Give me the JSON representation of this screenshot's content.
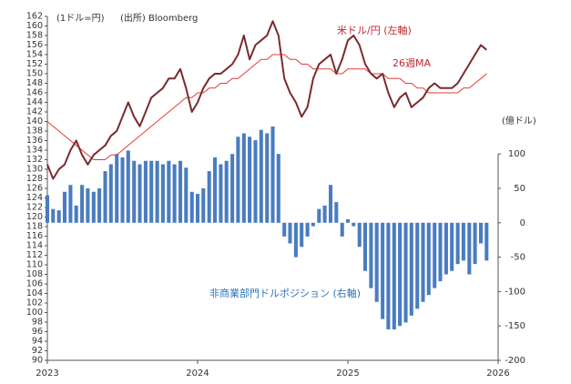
{
  "chart_data": {
    "type": "bar-line",
    "unit_left": "(1ドル=円)",
    "source": "(出所) Bloomberg",
    "unit_right": "(億ドル)",
    "annotations": [
      "米ドル/円 (左軸)",
      "26週MA",
      "非商業部門ドルポジション (右軸)"
    ],
    "x": [
      2023.0,
      2023.038,
      2023.077,
      2023.115,
      2023.154,
      2023.192,
      2023.231,
      2023.269,
      2023.308,
      2023.346,
      2023.385,
      2023.423,
      2023.462,
      2023.5,
      2023.538,
      2023.577,
      2023.615,
      2023.654,
      2023.692,
      2023.731,
      2023.769,
      2023.808,
      2023.846,
      2023.885,
      2023.923,
      2023.962,
      2024.0,
      2024.038,
      2024.077,
      2024.115,
      2024.154,
      2024.192,
      2024.231,
      2024.269,
      2024.308,
      2024.346,
      2024.385,
      2024.423,
      2024.462,
      2024.5,
      2024.538,
      2024.577,
      2024.615,
      2024.654,
      2024.692,
      2024.731,
      2024.769,
      2024.808,
      2024.846,
      2024.885,
      2024.923,
      2024.962,
      2025.0,
      2025.038,
      2025.077,
      2025.115,
      2025.154,
      2025.192,
      2025.231,
      2025.269,
      2025.308,
      2025.346,
      2025.385,
      2025.423,
      2025.462,
      2025.5,
      2025.538,
      2025.577,
      2025.615,
      2025.654,
      2025.692,
      2025.731,
      2025.769,
      2025.808,
      2025.846,
      2025.885,
      2025.923
    ],
    "series": [
      {
        "name": "ドルポジション",
        "kind": "bar",
        "axis": "y2",
        "color": "#4a7cbf",
        "values": [
          40,
          20,
          18,
          45,
          55,
          25,
          55,
          50,
          45,
          50,
          75,
          85,
          100,
          95,
          105,
          90,
          85,
          90,
          90,
          90,
          85,
          90,
          85,
          90,
          80,
          45,
          42,
          50,
          75,
          95,
          85,
          90,
          100,
          125,
          130,
          125,
          120,
          135,
          130,
          140,
          100,
          -20,
          -30,
          -50,
          -35,
          -20,
          -5,
          20,
          25,
          55,
          30,
          -20,
          5,
          -5,
          -35,
          -70,
          -95,
          -115,
          -140,
          -155,
          -155,
          -150,
          -145,
          -135,
          -125,
          -115,
          -105,
          -95,
          -85,
          -75,
          -70,
          -60,
          -55,
          -75,
          -60,
          -30,
          -55
        ]
      },
      {
        "name": "26週MA",
        "kind": "line",
        "color": "#e23b3b",
        "width": 1,
        "values": [
          140,
          139,
          138,
          137,
          136,
          135,
          134,
          133,
          132,
          132,
          132,
          133,
          133,
          134,
          135,
          136,
          137,
          138,
          139,
          140,
          141,
          142,
          143,
          144,
          145,
          145,
          146,
          146,
          147,
          147,
          148,
          148,
          149,
          149,
          150,
          151,
          152,
          153,
          153,
          154,
          154,
          154,
          153,
          153,
          152,
          152,
          151,
          151,
          151,
          151,
          150,
          150,
          151,
          151,
          151,
          151,
          150,
          150,
          150,
          149,
          149,
          149,
          148,
          148,
          147,
          147,
          146,
          146,
          146,
          146,
          146,
          146,
          147,
          147,
          148,
          149,
          150
        ]
      },
      {
        "name": "米ドル/円",
        "kind": "line",
        "color": "#7b2b2e",
        "width": 2,
        "values": [
          131,
          128,
          130,
          131,
          134,
          136,
          133,
          131,
          133,
          134,
          135,
          137,
          138,
          141,
          144,
          141,
          139,
          142,
          145,
          146,
          147,
          149,
          149,
          151,
          147,
          142,
          144,
          147,
          149,
          150,
          150,
          151,
          152,
          154,
          158,
          153,
          156,
          157,
          158,
          161,
          158,
          149,
          146,
          144,
          141,
          143,
          149,
          152,
          153,
          154,
          150,
          153,
          157,
          158,
          156,
          152,
          150,
          149,
          150,
          146,
          143,
          145,
          146,
          143,
          144,
          145,
          147,
          148,
          147,
          147,
          147,
          148,
          150,
          152,
          154,
          156,
          155
        ]
      }
    ],
    "xlim": [
      2023,
      2026
    ],
    "xticks": [
      2023,
      2024,
      2025,
      2026
    ],
    "ylim": [
      90,
      162
    ],
    "yticks": [
      90,
      92,
      94,
      96,
      98,
      100,
      102,
      104,
      106,
      108,
      110,
      112,
      114,
      116,
      118,
      120,
      122,
      124,
      126,
      128,
      130,
      132,
      134,
      136,
      138,
      140,
      142,
      144,
      146,
      148,
      150,
      152,
      154,
      156,
      158,
      160,
      162
    ],
    "y2lim": [
      -200,
      300
    ],
    "y2ticks": [
      -200,
      -150,
      -100,
      -50,
      0,
      50,
      100
    ]
  }
}
